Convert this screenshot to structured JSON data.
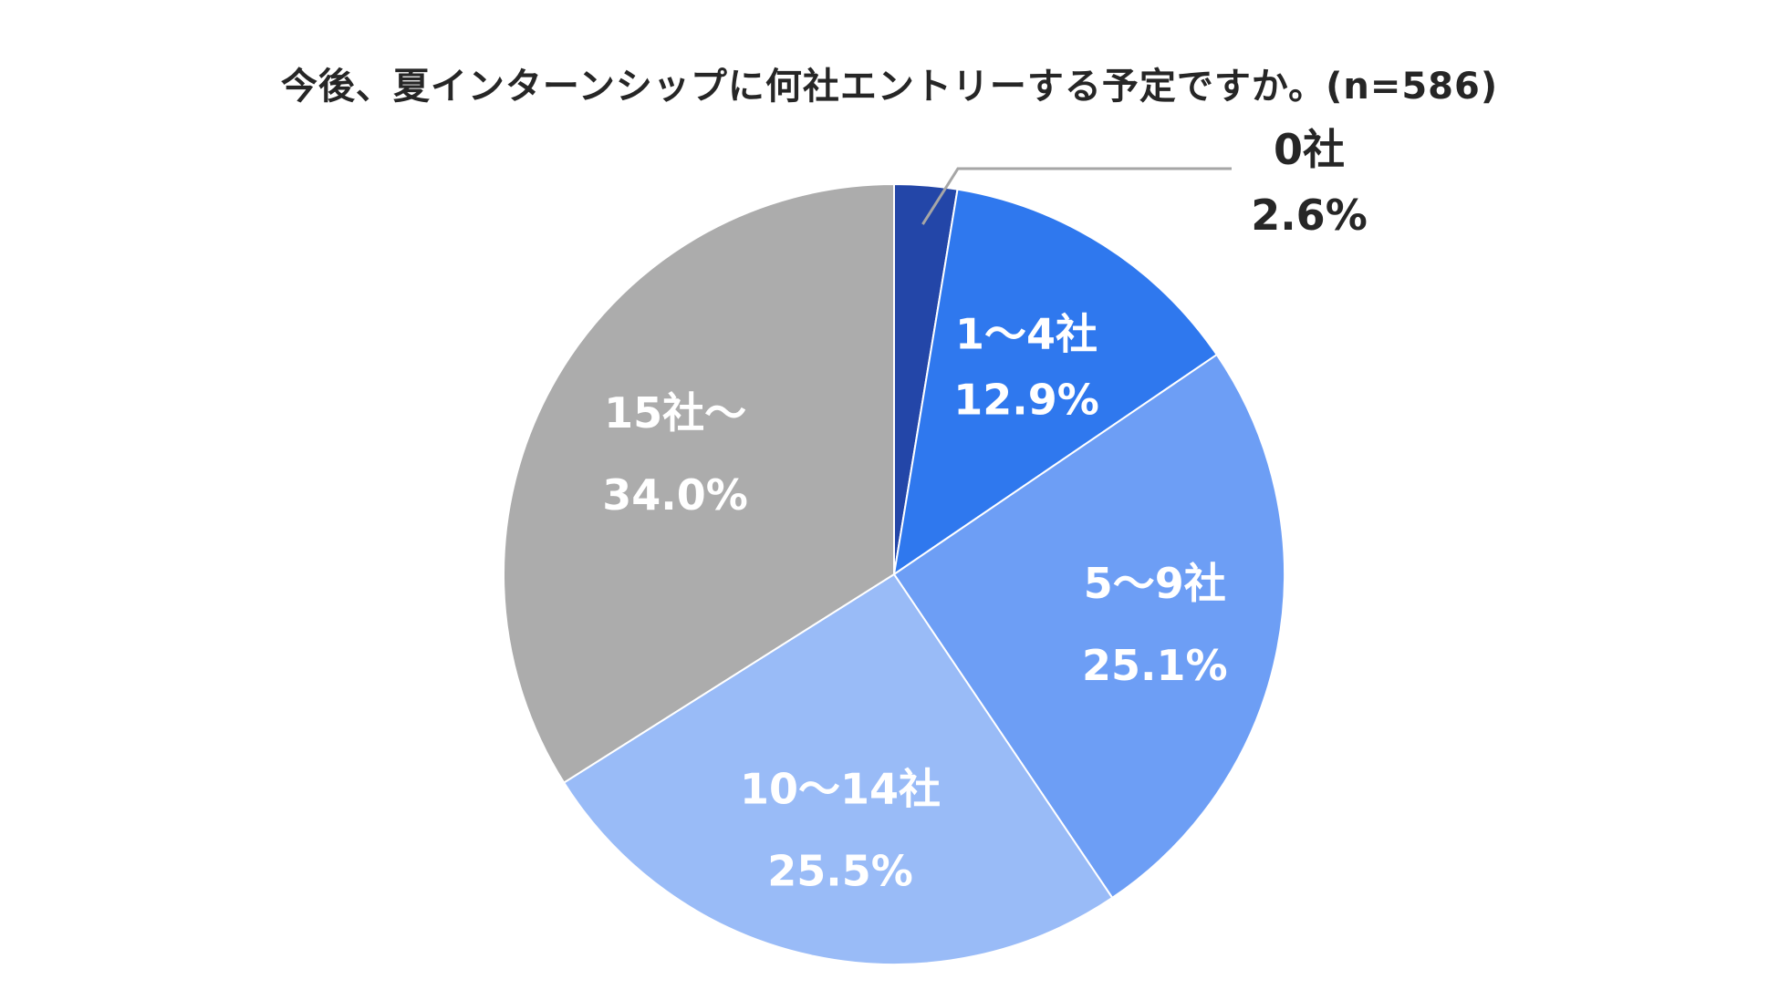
{
  "chart_data": {
    "type": "pie",
    "title": "今後、夏インターンシップに何社エントリーする予定ですか。(n=586)",
    "categories": [
      "0社",
      "1〜4社",
      "5〜9社",
      "10〜14社",
      "15社〜"
    ],
    "values": [
      2.6,
      12.9,
      25.1,
      25.5,
      34.0
    ],
    "value_labels": [
      "2.6%",
      "12.9%",
      "25.1%",
      "25.5%",
      "34.0%"
    ],
    "colors": [
      "#2346a8",
      "#2f78ee",
      "#6d9ef5",
      "#99bbf7",
      "#acacac"
    ],
    "label_colors": [
      "#262626",
      "#ffffff",
      "#ffffff",
      "#ffffff",
      "#ffffff"
    ],
    "start_angle": "12 o'clock",
    "direction": "clockwise",
    "leader_line_color": "#a6a6a6"
  }
}
